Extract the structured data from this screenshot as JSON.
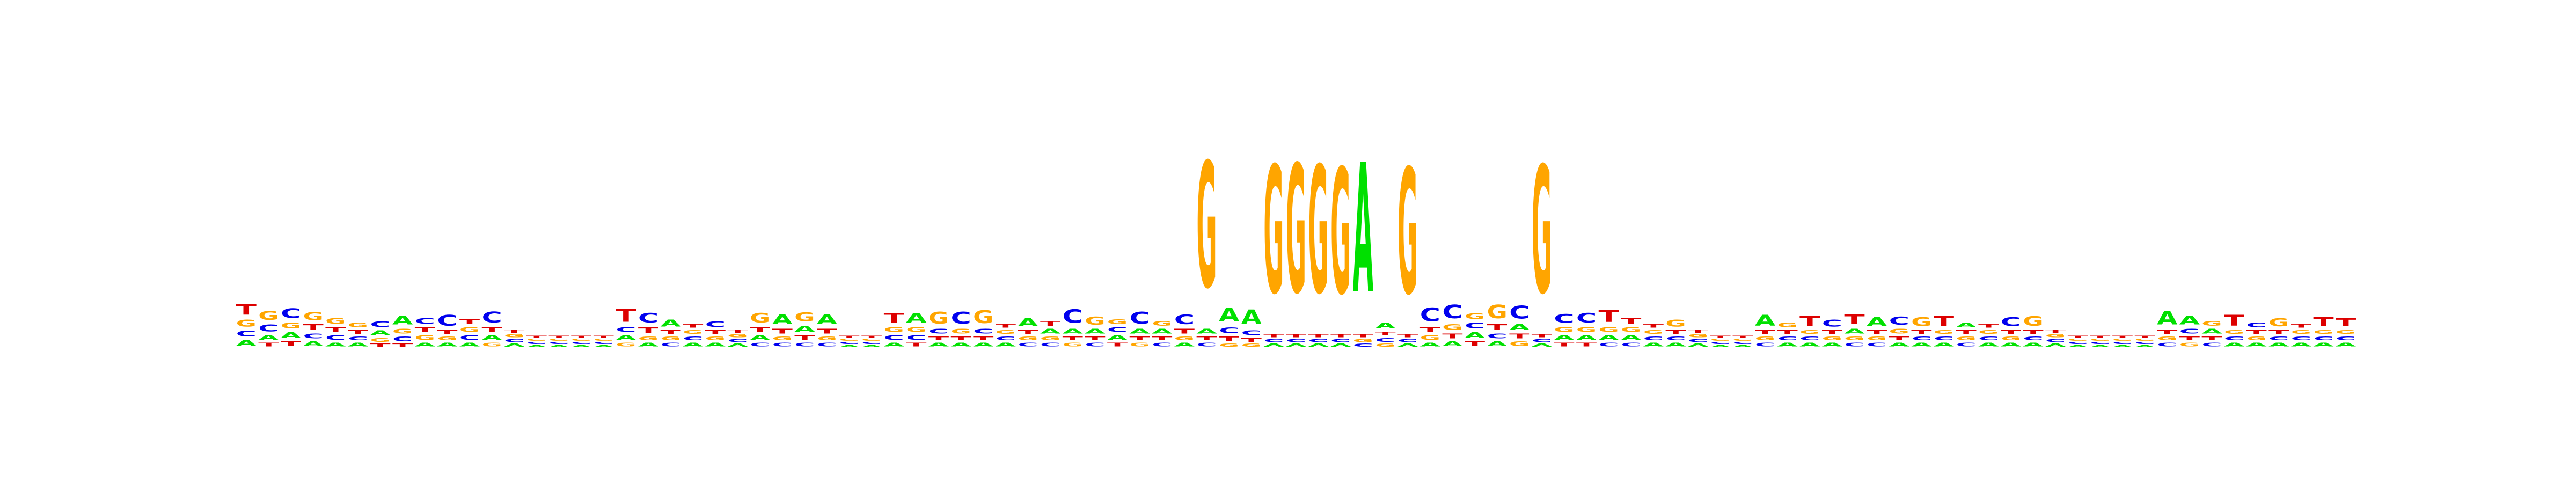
{
  "chart_data": {
    "type": "sequence-logo",
    "title": "",
    "xlabel": "",
    "ylabel": "",
    "alphabet": [
      "A",
      "C",
      "G",
      "T"
    ],
    "colors": {
      "A": "#00e000",
      "C": "#0000ee",
      "G": "#ffa500",
      "T": "#dd0000"
    },
    "ylim": [
      0,
      2
    ],
    "positions": [
      {
        "A": 0.06,
        "C": 0.06,
        "G": 0.07,
        "T": 0.11
      },
      {
        "A": 0.05,
        "C": 0.07,
        "G": 0.09,
        "T": 0.04
      },
      {
        "A": 0.06,
        "C": 0.1,
        "G": 0.06,
        "T": 0.05
      },
      {
        "A": 0.05,
        "C": 0.05,
        "G": 0.08,
        "T": 0.06
      },
      {
        "A": 0.04,
        "C": 0.05,
        "G": 0.06,
        "T": 0.05
      },
      {
        "A": 0.04,
        "C": 0.04,
        "G": 0.05,
        "T": 0.04
      },
      {
        "A": 0.05,
        "C": 0.06,
        "G": 0.04,
        "T": 0.03
      },
      {
        "A": 0.09,
        "C": 0.05,
        "G": 0.05,
        "T": 0.03
      },
      {
        "A": 0.04,
        "C": 0.06,
        "G": 0.05,
        "T": 0.05
      },
      {
        "A": 0.04,
        "C": 0.11,
        "G": 0.04,
        "T": 0.04
      },
      {
        "A": 0.04,
        "C": 0.05,
        "G": 0.05,
        "T": 0.05
      },
      {
        "A": 0.05,
        "C": 0.11,
        "G": 0.04,
        "T": 0.05
      },
      {
        "A": 0.03,
        "C": 0.03,
        "G": 0.03,
        "T": 0.03
      },
      {
        "A": 0.02,
        "C": 0.02,
        "G": 0.02,
        "T": 0.02
      },
      {
        "A": 0.02,
        "C": 0.02,
        "G": 0.02,
        "T": 0.02
      },
      {
        "A": 0.02,
        "C": 0.02,
        "G": 0.02,
        "T": 0.02
      },
      {
        "A": 0.02,
        "C": 0.02,
        "G": 0.02,
        "T": 0.02
      },
      {
        "A": 0.05,
        "C": 0.05,
        "G": 0.04,
        "T": 0.13
      },
      {
        "A": 0.04,
        "C": 0.1,
        "G": 0.04,
        "T": 0.06
      },
      {
        "A": 0.07,
        "C": 0.04,
        "G": 0.04,
        "T": 0.04
      },
      {
        "A": 0.04,
        "C": 0.04,
        "G": 0.04,
        "T": 0.04
      },
      {
        "A": 0.04,
        "C": 0.06,
        "G": 0.04,
        "T": 0.04
      },
      {
        "A": 0.03,
        "C": 0.03,
        "G": 0.03,
        "T": 0.03
      },
      {
        "A": 0.05,
        "C": 0.04,
        "G": 0.1,
        "T": 0.05
      },
      {
        "A": 0.1,
        "C": 0.04,
        "G": 0.04,
        "T": 0.05
      },
      {
        "A": 0.06,
        "C": 0.04,
        "G": 0.09,
        "T": 0.05
      },
      {
        "A": 0.1,
        "C": 0.04,
        "G": 0.04,
        "T": 0.05
      },
      {
        "A": 0.02,
        "C": 0.02,
        "G": 0.02,
        "T": 0.02
      },
      {
        "A": 0.02,
        "C": 0.02,
        "G": 0.02,
        "T": 0.02
      },
      {
        "A": 0.04,
        "C": 0.05,
        "G": 0.05,
        "T": 0.1
      },
      {
        "A": 0.1,
        "C": 0.05,
        "G": 0.05,
        "T": 0.04
      },
      {
        "A": 0.04,
        "C": 0.05,
        "G": 0.12,
        "T": 0.04
      },
      {
        "A": 0.04,
        "C": 0.12,
        "G": 0.05,
        "T": 0.04
      },
      {
        "A": 0.04,
        "C": 0.05,
        "G": 0.13,
        "T": 0.04
      },
      {
        "A": 0.04,
        "C": 0.04,
        "G": 0.04,
        "T": 0.04
      },
      {
        "A": 0.08,
        "C": 0.04,
        "G": 0.04,
        "T": 0.04
      },
      {
        "A": 0.05,
        "C": 0.04,
        "G": 0.04,
        "T": 0.05
      },
      {
        "A": 0.05,
        "C": 0.14,
        "G": 0.04,
        "T": 0.04
      },
      {
        "A": 0.05,
        "C": 0.04,
        "G": 0.08,
        "T": 0.04
      },
      {
        "A": 0.05,
        "C": 0.05,
        "G": 0.05,
        "T": 0.04
      },
      {
        "A": 0.05,
        "C": 0.12,
        "G": 0.04,
        "T": 0.04
      },
      {
        "A": 0.05,
        "C": 0.04,
        "G": 0.05,
        "T": 0.04
      },
      {
        "A": 0.04,
        "C": 0.1,
        "G": 0.04,
        "T": 0.05
      },
      {
        "A": 0.05,
        "C": 0.04,
        "G": 1.28,
        "T": 0.04
      },
      {
        "A": 0.14,
        "C": 0.06,
        "G": 0.03,
        "T": 0.05
      },
      {
        "A": 0.15,
        "C": 0.05,
        "G": 0.03,
        "T": 0.04
      },
      {
        "A": 0.03,
        "C": 0.03,
        "G": 1.3,
        "T": 0.03
      },
      {
        "A": 0.03,
        "C": 0.03,
        "G": 1.31,
        "T": 0.03
      },
      {
        "A": 0.03,
        "C": 0.03,
        "G": 1.3,
        "T": 0.03
      },
      {
        "A": 0.03,
        "C": 0.03,
        "G": 1.28,
        "T": 0.03
      },
      {
        "A": 1.32,
        "C": 0.03,
        "G": 0.03,
        "T": 0.03
      },
      {
        "A": 0.06,
        "C": 0.04,
        "G": 0.03,
        "T": 0.04
      },
      {
        "A": 0.03,
        "C": 0.03,
        "G": 1.28,
        "T": 0.03
      },
      {
        "A": 0.04,
        "C": 0.14,
        "G": 0.05,
        "T": 0.05
      },
      {
        "A": 0.05,
        "C": 0.14,
        "G": 0.06,
        "T": 0.05
      },
      {
        "A": 0.06,
        "C": 0.06,
        "G": 0.06,
        "T": 0.05
      },
      {
        "A": 0.05,
        "C": 0.05,
        "G": 0.14,
        "T": 0.06
      },
      {
        "A": 0.06,
        "C": 0.13,
        "G": 0.05,
        "T": 0.05
      },
      {
        "A": 0.03,
        "C": 0.03,
        "G": 1.3,
        "T": 0.03
      },
      {
        "A": 0.05,
        "C": 0.09,
        "G": 0.05,
        "T": 0.04
      },
      {
        "A": 0.05,
        "C": 0.1,
        "G": 0.05,
        "T": 0.04
      },
      {
        "A": 0.05,
        "C": 0.04,
        "G": 0.05,
        "T": 0.12
      },
      {
        "A": 0.05,
        "C": 0.04,
        "G": 0.05,
        "T": 0.06
      },
      {
        "A": 0.04,
        "C": 0.04,
        "G": 0.04,
        "T": 0.04
      },
      {
        "A": 0.04,
        "C": 0.04,
        "G": 0.07,
        "T": 0.04
      },
      {
        "A": 0.03,
        "C": 0.03,
        "G": 0.03,
        "T": 0.03
      },
      {
        "A": 0.02,
        "C": 0.02,
        "G": 0.02,
        "T": 0.02
      },
      {
        "A": 0.02,
        "C": 0.02,
        "G": 0.02,
        "T": 0.02
      },
      {
        "A": 0.11,
        "C": 0.04,
        "G": 0.04,
        "T": 0.04
      },
      {
        "A": 0.04,
        "C": 0.04,
        "G": 0.05,
        "T": 0.04
      },
      {
        "A": 0.04,
        "C": 0.04,
        "G": 0.04,
        "T": 0.1
      },
      {
        "A": 0.04,
        "C": 0.07,
        "G": 0.04,
        "T": 0.04
      },
      {
        "A": 0.05,
        "C": 0.04,
        "G": 0.04,
        "T": 0.1
      },
      {
        "A": 0.09,
        "C": 0.04,
        "G": 0.04,
        "T": 0.04
      },
      {
        "A": 0.04,
        "C": 0.08,
        "G": 0.05,
        "T": 0.04
      },
      {
        "A": 0.04,
        "C": 0.04,
        "G": 0.09,
        "T": 0.04
      },
      {
        "A": 0.04,
        "C": 0.04,
        "G": 0.04,
        "T": 0.1
      },
      {
        "A": 0.05,
        "C": 0.04,
        "G": 0.04,
        "T": 0.04
      },
      {
        "A": 0.04,
        "C": 0.04,
        "G": 0.04,
        "T": 0.04
      },
      {
        "A": 0.04,
        "C": 0.09,
        "G": 0.04,
        "T": 0.04
      },
      {
        "A": 0.04,
        "C": 0.04,
        "G": 0.1,
        "T": 0.04
      },
      {
        "A": 0.03,
        "C": 0.03,
        "G": 0.03,
        "T": 0.03
      },
      {
        "A": 0.02,
        "C": 0.02,
        "G": 0.02,
        "T": 0.02
      },
      {
        "A": 0.02,
        "C": 0.02,
        "G": 0.02,
        "T": 0.02
      },
      {
        "A": 0.02,
        "C": 0.02,
        "G": 0.02,
        "T": 0.02
      },
      {
        "A": 0.02,
        "C": 0.02,
        "G": 0.02,
        "T": 0.02
      },
      {
        "A": 0.14,
        "C": 0.04,
        "G": 0.04,
        "T": 0.04
      },
      {
        "A": 0.09,
        "C": 0.05,
        "G": 0.04,
        "T": 0.04
      },
      {
        "A": 0.05,
        "C": 0.04,
        "G": 0.05,
        "T": 0.04
      },
      {
        "A": 0.04,
        "C": 0.04,
        "G": 0.04,
        "T": 0.11
      },
      {
        "A": 0.04,
        "C": 0.05,
        "G": 0.04,
        "T": 0.04
      },
      {
        "A": 0.04,
        "C": 0.04,
        "G": 0.08,
        "T": 0.04
      },
      {
        "A": 0.04,
        "C": 0.04,
        "G": 0.04,
        "T": 0.04
      },
      {
        "A": 0.04,
        "C": 0.04,
        "G": 0.04,
        "T": 0.09
      },
      {
        "A": 0.04,
        "C": 0.04,
        "G": 0.04,
        "T": 0.08
      }
    ]
  }
}
